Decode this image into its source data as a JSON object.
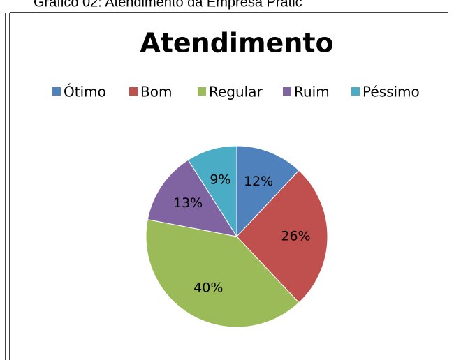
{
  "caption": "Gráfico 02: Atendimento da Empresa Pratic",
  "chart_data": {
    "type": "pie",
    "title": "Atendimento",
    "categories": [
      "Ótimo",
      "Bom",
      "Regular",
      "Ruim",
      "Péssimo"
    ],
    "values": [
      12,
      26,
      40,
      13,
      9
    ],
    "value_labels": [
      "12%",
      "26%",
      "40%",
      "13%",
      "9%"
    ],
    "colors": [
      "#4f81bd",
      "#c0504d",
      "#9bbb59",
      "#8064a2",
      "#4bacc6"
    ],
    "legend": "top"
  }
}
